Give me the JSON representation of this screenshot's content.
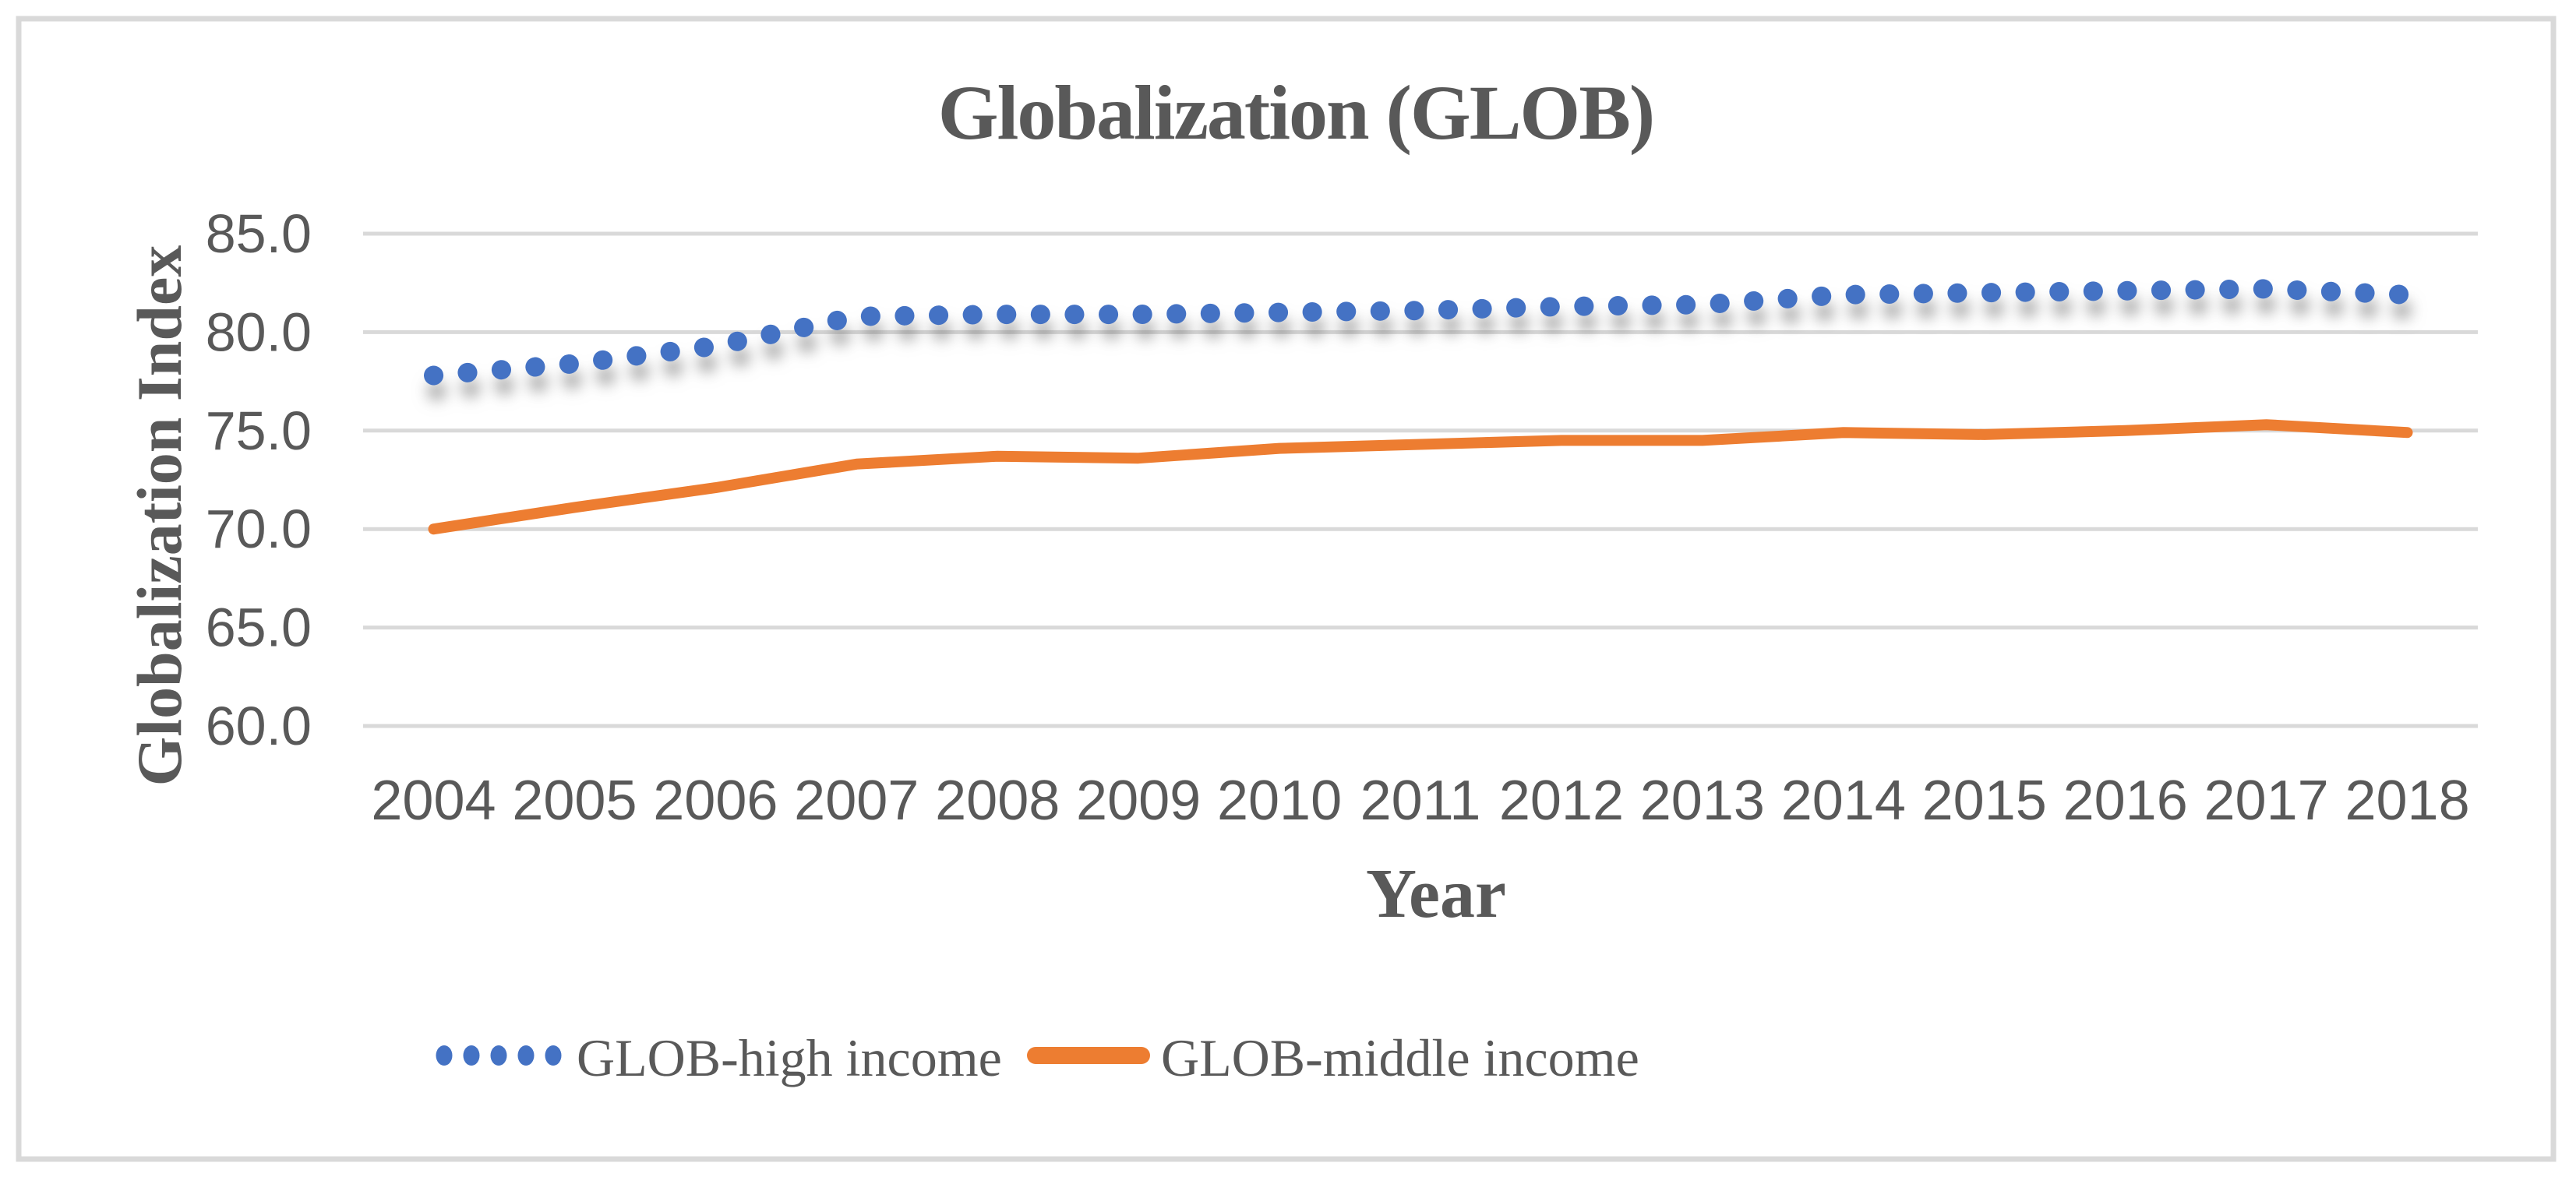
{
  "chart_data": {
    "type": "line",
    "title": "Globalization (GLOB)",
    "x_axis": {
      "label": "Year",
      "ticks": [
        "2004",
        "2005",
        "2006",
        "2007",
        "2008",
        "2009",
        "2010",
        "2011",
        "2012",
        "2013",
        "2014",
        "2015",
        "2016",
        "2017",
        "2018"
      ]
    },
    "y_axis": {
      "label": "Globalization Index",
      "ticks": [
        "85.0",
        "80.0",
        "75.0",
        "70.0",
        "65.0",
        "60.0"
      ],
      "range": [
        60,
        85
      ]
    },
    "grid": true,
    "legend_position": "bottom",
    "series": [
      {
        "name": "GLOB-high income",
        "color": "#4472C4",
        "line_style": "dotted",
        "shadow": true,
        "values": [
          77.8,
          78.4,
          79.3,
          80.8,
          80.9,
          80.9,
          81.0,
          81.1,
          81.3,
          81.4,
          81.9,
          82.0,
          82.1,
          82.2,
          81.9
        ]
      },
      {
        "name": "GLOB-middle income",
        "color": "#ED7D31",
        "line_style": "solid",
        "shadow": false,
        "values": [
          70.0,
          71.1,
          72.1,
          73.3,
          73.7,
          73.6,
          74.1,
          74.3,
          74.5,
          74.5,
          74.9,
          74.8,
          75.0,
          75.3,
          74.9
        ]
      }
    ],
    "colors": {
      "text": "#595959",
      "grid": "#D9D9D9",
      "border": "#D9D9D9",
      "background": "#FFFFFF"
    }
  }
}
